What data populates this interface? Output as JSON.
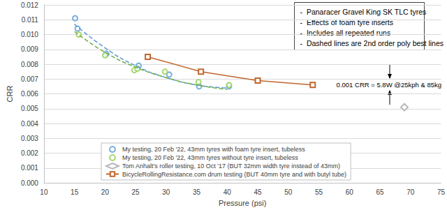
{
  "chart_data": {
    "type": "scatter",
    "notes": [
      "-  Panaracer Gravel King SK TLC tyres",
      "-  Effects of foam tyre inserts",
      "-  Includes all repeated runs",
      "-  Dashed lines are 2nd order poly best lines"
    ],
    "annotation": "0.001 CRR = 5.8W @25kph & 85kg",
    "x_label": "Pressure (psi)",
    "y_label": "CRR",
    "xlim": [
      10,
      75
    ],
    "xticks": [
      10,
      15,
      20,
      25,
      30,
      35,
      40,
      45,
      50,
      55,
      60,
      65,
      70,
      75
    ],
    "ylim": [
      0,
      0.012
    ],
    "yticks": [
      {
        "value": 0,
        "label": "0.000"
      },
      0.001,
      0.002,
      0.003,
      0.004,
      0.005,
      0.006,
      0.007,
      0.008,
      0.009,
      {
        "value": 0.01,
        "label": "0.010"
      },
      0.011,
      0.012
    ],
    "grid": true,
    "legend": "bottom",
    "series": [
      {
        "name": "My testing, 20 Feb '22, 43mm tyres with foam tyre insert, tubeless",
        "type": "scatter",
        "color": "#5b9bd5",
        "marker": "circle",
        "x": [
          15.1,
          15.5,
          20.2,
          25.5,
          30.5,
          35.4,
          40.3
        ],
        "values": [
          0.0111,
          0.0104,
          0.0087,
          0.0079,
          0.0073,
          0.0065,
          0.0065
        ]
      },
      {
        "name": "My testing, 20 Feb '22, 43mm tyres without tyre insert, tubeless",
        "type": "scatter",
        "color": "#92d050",
        "marker": "circle",
        "x": [
          15.7,
          20.0,
          24.8,
          25.3,
          29.8,
          35.3,
          40.3
        ],
        "values": [
          0.01,
          0.0086,
          0.0076,
          0.0077,
          0.0075,
          0.0068,
          0.0066
        ]
      },
      {
        "name": "Tom Anhalt's roller testing, 10 Oct '17 (BUT 32mm width tyre instead of 43mm)",
        "type": "scatter",
        "color": "#a6a6a6",
        "marker": "diamond",
        "x": [
          69
        ],
        "values": [
          0.0051
        ]
      },
      {
        "name": "BicycleRollingResistance.com drum testing (BUT 40mm tyre and with butyl tube)",
        "type": "line",
        "color": "#c0662b",
        "marker": "square",
        "line_style": "solid",
        "x": [
          27,
          35.7,
          45,
          54
        ],
        "values": [
          0.0085,
          0.0075,
          0.0069,
          0.0066
        ]
      },
      {
        "type": "line",
        "color": "#5b9bd5",
        "marker": "none",
        "line_style": "dashed",
        "x": [
          15,
          20,
          25,
          30,
          35,
          40
        ],
        "values": [
          0.0107,
          0.0091,
          0.0079,
          0.0071,
          0.0066,
          0.0064
        ]
      },
      {
        "type": "line",
        "color": "#70ad47",
        "marker": "none",
        "line_style": "dashed",
        "x": [
          15,
          20,
          25,
          30,
          35,
          40
        ],
        "values": [
          0.0102,
          0.0088,
          0.0078,
          0.0071,
          0.0066,
          0.0063
        ]
      }
    ]
  }
}
